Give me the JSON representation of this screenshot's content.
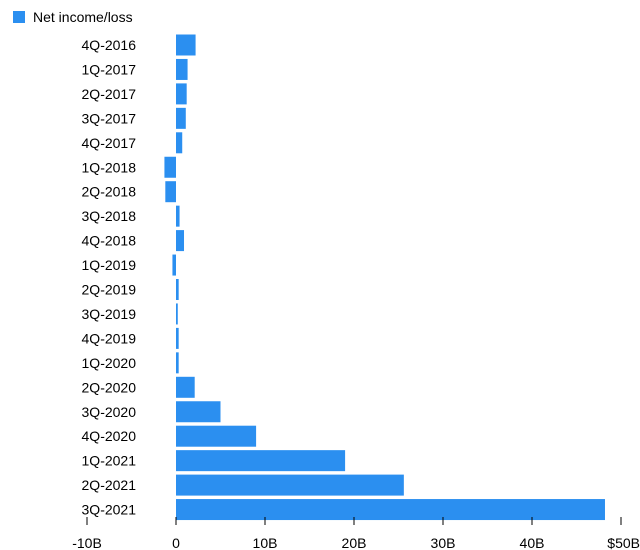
{
  "chart_data": {
    "type": "bar",
    "orientation": "horizontal",
    "categories": [
      "4Q-2016",
      "1Q-2017",
      "2Q-2017",
      "3Q-2017",
      "4Q-2017",
      "1Q-2018",
      "2Q-2018",
      "3Q-2018",
      "4Q-2018",
      "1Q-2019",
      "2Q-2019",
      "3Q-2019",
      "4Q-2019",
      "1Q-2020",
      "2Q-2020",
      "3Q-2020",
      "4Q-2020",
      "1Q-2021",
      "2Q-2021",
      "3Q-2021"
    ],
    "series": [
      {
        "name": "Net income/loss",
        "color": "#2b8ff0",
        "values": [
          2.2,
          1.3,
          1.2,
          1.1,
          0.7,
          -1.3,
          -1.2,
          0.4,
          0.9,
          -0.4,
          0.3,
          0.2,
          0.3,
          0.3,
          2.1,
          5.0,
          9.0,
          19.0,
          25.6,
          48.2
        ]
      }
    ],
    "xlim": [
      -10,
      50
    ],
    "x_ticks": [
      -10,
      0,
      10,
      20,
      30,
      40,
      50
    ],
    "x_tick_labels": [
      "-10B",
      "0",
      "10B",
      "20B",
      "30B",
      "40B",
      "$50B"
    ],
    "legend_position": "top-left",
    "grid": false
  }
}
